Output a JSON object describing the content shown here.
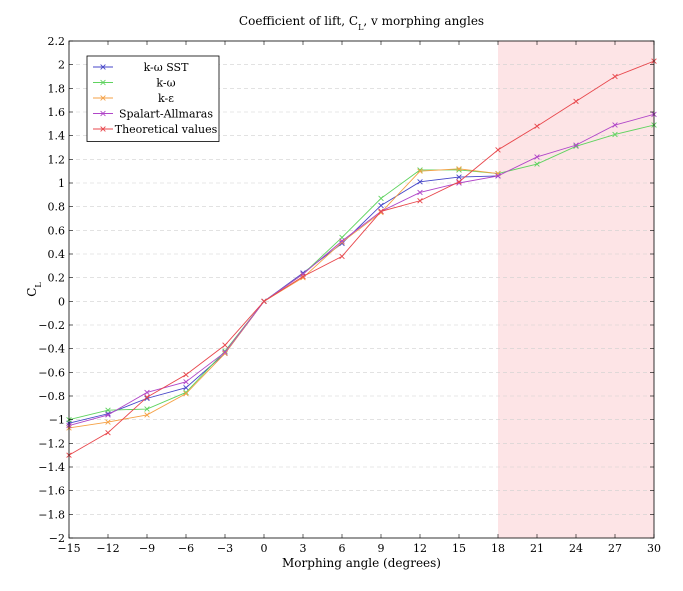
{
  "chart_data": {
    "type": "line",
    "title": "Coefficient of lift, C_L, v morphing angles",
    "xlabel": "Morphing angle (degrees)",
    "ylabel": "C_L",
    "xlim": [
      -15,
      30
    ],
    "ylim": [
      -2,
      2.2
    ],
    "x_ticks": [
      -15,
      -12,
      -9,
      -6,
      -3,
      0,
      3,
      6,
      9,
      12,
      15,
      18,
      21,
      24,
      27,
      30
    ],
    "y_ticks": [
      -2,
      -1.8,
      -1.6,
      -1.4,
      -1.2,
      -1,
      -0.8,
      -0.6,
      -0.4,
      -0.2,
      0,
      0.2,
      0.4,
      0.6,
      0.8,
      1,
      1.2,
      1.4,
      1.6,
      1.8,
      2,
      2.2
    ],
    "grid": "horizontal dashed",
    "legend_position": "top-left",
    "shaded_region": {
      "x_start": 18,
      "x_end": 30,
      "color": "#fde4e6"
    },
    "series": [
      {
        "name": "k-ω SST",
        "color": "#4646c8",
        "x": [
          -15,
          -12,
          -9,
          -6,
          -3,
          0,
          3,
          6,
          9,
          12,
          15,
          18
        ],
        "y": [
          -1.03,
          -0.95,
          -0.82,
          -0.73,
          -0.44,
          0,
          0.24,
          0.49,
          0.81,
          1.01,
          1.05,
          1.06
        ]
      },
      {
        "name": "k-ω",
        "color": "#5fd35f",
        "x": [
          -15,
          -12,
          -9,
          -6,
          -3,
          0,
          3,
          6,
          9,
          12,
          15,
          18,
          21,
          24,
          27,
          30
        ],
        "y": [
          -1.0,
          -0.92,
          -0.91,
          -0.77,
          -0.42,
          0,
          0.23,
          0.54,
          0.87,
          1.11,
          1.11,
          1.08,
          1.16,
          1.31,
          1.41,
          1.49
        ]
      },
      {
        "name": "k-ε",
        "color": "#f5a145",
        "x": [
          -15,
          -12,
          -9,
          -6,
          -3,
          0,
          3,
          6,
          9,
          12,
          15,
          18
        ],
        "y": [
          -1.07,
          -1.02,
          -0.96,
          -0.78,
          -0.44,
          0,
          0.2,
          0.5,
          0.75,
          1.1,
          1.12,
          1.08
        ]
      },
      {
        "name": "Spalart-Allmaras",
        "color": "#b046c8",
        "x": [
          -15,
          -12,
          -9,
          -6,
          -3,
          0,
          3,
          6,
          9,
          12,
          15,
          18,
          21,
          24,
          27,
          30
        ],
        "y": [
          -1.05,
          -0.96,
          -0.77,
          -0.68,
          -0.43,
          0,
          0.23,
          0.51,
          0.76,
          0.92,
          1.0,
          1.06,
          1.22,
          1.32,
          1.49,
          1.58
        ]
      },
      {
        "name": "Theoretical values",
        "color": "#e8474c",
        "x": [
          -15,
          -12,
          -9,
          -6,
          -3,
          0,
          3,
          6,
          9,
          12,
          15,
          18,
          21,
          24,
          27,
          30
        ],
        "y": [
          -1.3,
          -1.11,
          -0.81,
          -0.62,
          -0.37,
          0,
          0.21,
          0.38,
          0.76,
          0.85,
          1.01,
          1.28,
          1.48,
          1.69,
          1.9,
          2.03
        ]
      }
    ]
  }
}
